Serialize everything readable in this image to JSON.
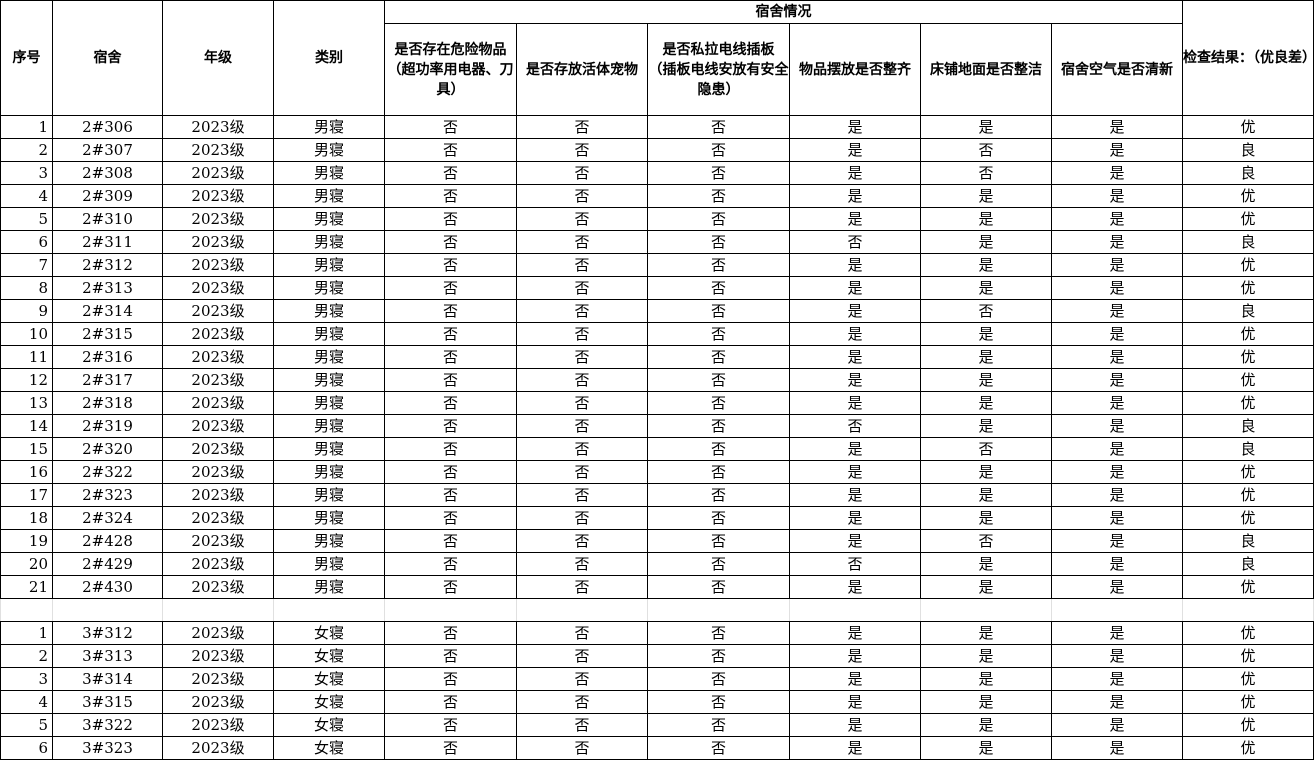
{
  "header": {
    "seq": "序号",
    "dorm": "宿舍",
    "grade": "年级",
    "category": "类别",
    "group": "宿舍情况",
    "dangerous": "是否存在危险物品（超功率用电器、刀具）",
    "pets": "是否存放活体宠物",
    "wiring": "是否私拉电线插板 （插板电线安放有安全隐患）",
    "tidy": "物品摆放是否整齐",
    "clean": "床铺地面是否整洁",
    "air": "宿舍空气是否清新",
    "result": "检查结果：（优良差）"
  },
  "male_rows": [
    [
      "1",
      "2#306",
      "2023级",
      "男寝",
      "否",
      "否",
      "否",
      "是",
      "是",
      "是",
      "优"
    ],
    [
      "2",
      "2#307",
      "2023级",
      "男寝",
      "否",
      "否",
      "否",
      "是",
      "否",
      "是",
      "良"
    ],
    [
      "3",
      "2#308",
      "2023级",
      "男寝",
      "否",
      "否",
      "否",
      "是",
      "否",
      "是",
      "良"
    ],
    [
      "4",
      "2#309",
      "2023级",
      "男寝",
      "否",
      "否",
      "否",
      "是",
      "是",
      "是",
      "优"
    ],
    [
      "5",
      "2#310",
      "2023级",
      "男寝",
      "否",
      "否",
      "否",
      "是",
      "是",
      "是",
      "优"
    ],
    [
      "6",
      "2#311",
      "2023级",
      "男寝",
      "否",
      "否",
      "否",
      "否",
      "是",
      "是",
      "良"
    ],
    [
      "7",
      "2#312",
      "2023级",
      "男寝",
      "否",
      "否",
      "否",
      "是",
      "是",
      "是",
      "优"
    ],
    [
      "8",
      "2#313",
      "2023级",
      "男寝",
      "否",
      "否",
      "否",
      "是",
      "是",
      "是",
      "优"
    ],
    [
      "9",
      "2#314",
      "2023级",
      "男寝",
      "否",
      "否",
      "否",
      "是",
      "否",
      "是",
      "良"
    ],
    [
      "10",
      "2#315",
      "2023级",
      "男寝",
      "否",
      "否",
      "否",
      "是",
      "是",
      "是",
      "优"
    ],
    [
      "11",
      "2#316",
      "2023级",
      "男寝",
      "否",
      "否",
      "否",
      "是",
      "是",
      "是",
      "优"
    ],
    [
      "12",
      "2#317",
      "2023级",
      "男寝",
      "否",
      "否",
      "否",
      "是",
      "是",
      "是",
      "优"
    ],
    [
      "13",
      "2#318",
      "2023级",
      "男寝",
      "否",
      "否",
      "否",
      "是",
      "是",
      "是",
      "优"
    ],
    [
      "14",
      "2#319",
      "2023级",
      "男寝",
      "否",
      "否",
      "否",
      "否",
      "是",
      "是",
      "良"
    ],
    [
      "15",
      "2#320",
      "2023级",
      "男寝",
      "否",
      "否",
      "否",
      "是",
      "否",
      "是",
      "良"
    ],
    [
      "16",
      "2#322",
      "2023级",
      "男寝",
      "否",
      "否",
      "否",
      "是",
      "是",
      "是",
      "优"
    ],
    [
      "17",
      "2#323",
      "2023级",
      "男寝",
      "否",
      "否",
      "否",
      "是",
      "是",
      "是",
      "优"
    ],
    [
      "18",
      "2#324",
      "2023级",
      "男寝",
      "否",
      "否",
      "否",
      "是",
      "是",
      "是",
      "优"
    ],
    [
      "19",
      "2#428",
      "2023级",
      "男寝",
      "否",
      "否",
      "否",
      "是",
      "否",
      "是",
      "良"
    ],
    [
      "20",
      "2#429",
      "2023级",
      "男寝",
      "否",
      "否",
      "否",
      "否",
      "是",
      "是",
      "良"
    ],
    [
      "21",
      "2#430",
      "2023级",
      "男寝",
      "否",
      "否",
      "否",
      "是",
      "是",
      "是",
      "优"
    ]
  ],
  "female_rows": [
    [
      "1",
      "3#312",
      "2023级",
      "女寝",
      "否",
      "否",
      "否",
      "是",
      "是",
      "是",
      "优"
    ],
    [
      "2",
      "3#313",
      "2023级",
      "女寝",
      "否",
      "否",
      "否",
      "是",
      "是",
      "是",
      "优"
    ],
    [
      "3",
      "3#314",
      "2023级",
      "女寝",
      "否",
      "否",
      "否",
      "是",
      "是",
      "是",
      "优"
    ],
    [
      "4",
      "3#315",
      "2023级",
      "女寝",
      "否",
      "否",
      "否",
      "是",
      "是",
      "是",
      "优"
    ],
    [
      "5",
      "3#322",
      "2023级",
      "女寝",
      "否",
      "否",
      "否",
      "是",
      "是",
      "是",
      "优"
    ],
    [
      "6",
      "3#323",
      "2023级",
      "女寝",
      "否",
      "否",
      "否",
      "是",
      "是",
      "是",
      "优"
    ]
  ]
}
